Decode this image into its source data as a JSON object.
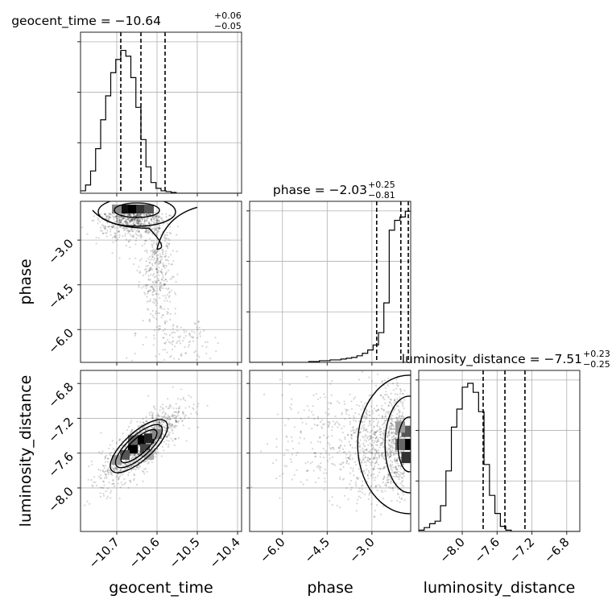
{
  "chart_data": {
    "type": "corner",
    "grid": true,
    "parameters": [
      {
        "name": "geocent_time",
        "xlabel": "geocent_time",
        "title_main": "geocent_time = −10.64",
        "title_plus": "+0.06",
        "title_minus": "−0.05",
        "median": -10.64,
        "q16": -10.69,
        "q84": -10.58,
        "range": [
          -10.79,
          -10.39
        ],
        "ticks": [
          -10.7,
          -10.6,
          -10.5,
          -10.4
        ],
        "tick_labels": [
          "−10.7",
          "−10.6",
          "−10.5",
          "−10.4"
        ],
        "hist": {
          "edges_start": -10.79,
          "bin_width": 0.0125,
          "counts": [
            3,
            10,
            27,
            54,
            89,
            118,
            146,
            162,
            173,
            166,
            140,
            104,
            65,
            32,
            13,
            6,
            3,
            2,
            1,
            0,
            0,
            0,
            0,
            0,
            0,
            0,
            0,
            0,
            0,
            0,
            0,
            0
          ],
          "y_max": 195
        }
      },
      {
        "name": "phase",
        "xlabel": "phase",
        "ylabel": "phase",
        "title_main": "phase = −2.03",
        "title_plus": "+0.25",
        "title_minus": "−0.81",
        "median": -2.03,
        "q16": -2.84,
        "q84": -1.78,
        "range": [
          -7.1,
          -1.7
        ],
        "ticks": [
          -6.0,
          -4.5,
          -3.0
        ],
        "tick_labels": [
          "−6.0",
          "−4.5",
          "−3.0"
        ],
        "hist": {
          "edges_start": -7.1,
          "bin_width": 0.18,
          "counts": [
            0,
            0,
            0,
            0,
            0,
            0,
            0,
            0,
            0,
            0,
            0,
            1,
            1,
            2,
            2,
            3,
            3,
            4,
            5,
            6,
            8,
            11,
            15,
            21,
            36,
            72,
            160,
            172,
            176,
            183
          ],
          "y_max": 195
        }
      },
      {
        "name": "luminosity_distance",
        "xlabel": "luminosity_distance",
        "ylabel": "luminosity_distance",
        "title_main": "luminosity_distance = −7.51",
        "title_plus": "+0.23",
        "title_minus": "−0.25",
        "median": -7.51,
        "q16": -7.76,
        "q84": -7.28,
        "range": [
          -8.5,
          -6.65
        ],
        "ticks": [
          -8.0,
          -7.6,
          -7.2,
          -6.8
        ],
        "tick_labels": [
          "−8.0",
          "−7.6",
          "−7.2",
          "−6.8"
        ],
        "hist": {
          "edges_start": -8.5,
          "bin_width": 0.0625,
          "counts": [
            1,
            3,
            6,
            8,
            20,
            47,
            81,
            95,
            112,
            115,
            108,
            93,
            52,
            28,
            14,
            4,
            1,
            0,
            0,
            0,
            0,
            0,
            0,
            0,
            0,
            0,
            0,
            0,
            0,
            0
          ],
          "y_max": 125
        }
      }
    ]
  }
}
